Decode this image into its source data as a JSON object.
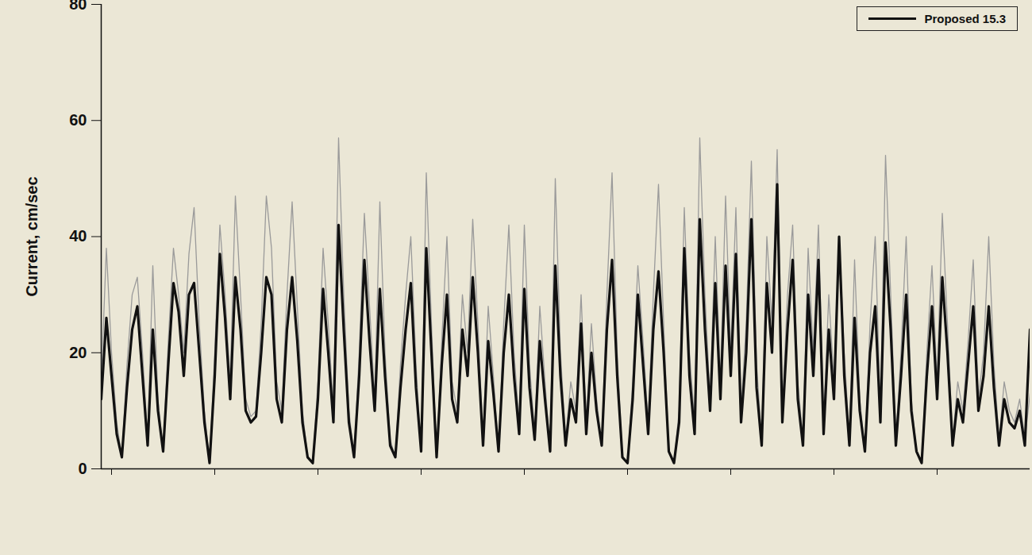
{
  "chart_data": {
    "type": "line",
    "y_label": "Current, cm/sec",
    "x": [
      189,
      189.5,
      190,
      190.5,
      191,
      191.5,
      192,
      192.5,
      193,
      193.5,
      194,
      194.5,
      195,
      195.5,
      196,
      196.5,
      197,
      197.5,
      198,
      198.5,
      199,
      199.5,
      200,
      200.5,
      201,
      201.5,
      202,
      202.5,
      203,
      203.5,
      204,
      204.5,
      205,
      205.5,
      206,
      206.5,
      207,
      207.5,
      208,
      208.5,
      209,
      209.5,
      210,
      210.5,
      211,
      211.5,
      212,
      212.5,
      213,
      213.5,
      214,
      214.5,
      215,
      215.5,
      216,
      216.5,
      217,
      217.5,
      218,
      218.5,
      219,
      219.5,
      220,
      220.5,
      221,
      221.5,
      222,
      222.5,
      223,
      223.5,
      224,
      224.5,
      225,
      225.5,
      226,
      226.5,
      227,
      227.5,
      228,
      228.5,
      229,
      229.5,
      230,
      230.5,
      231,
      231.5,
      232,
      232.5,
      233,
      233.5,
      234,
      234.5,
      235,
      235.5,
      236,
      236.5,
      237,
      237.5,
      238,
      238.5,
      239,
      239.5,
      240,
      240.5,
      241,
      241.5,
      242,
      242.5,
      243,
      243.5,
      244,
      244.5,
      245,
      245.5,
      246,
      246.5,
      247,
      247.5,
      248,
      248.5,
      249,
      249.5,
      250,
      250.5,
      251,
      251.5,
      252,
      252.5,
      253,
      253.5,
      254,
      254.5,
      255,
      255.5,
      256,
      256.5,
      257,
      257.5,
      258,
      258.5,
      259,
      259.5,
      260,
      260.5,
      261,
      261.5,
      262,
      262.5,
      263,
      263.5,
      264,
      264.5,
      265,
      265.5,
      266,
      266.5,
      267,
      267.5,
      268,
      268.5,
      269,
      269.5,
      270,
      270.5,
      271,
      271.5,
      272,
      272.5,
      273,
      273.5,
      274,
      274.5,
      275,
      275.5,
      276,
      276.5,
      277,
      277.5,
      278,
      278.5,
      279
    ],
    "series": [
      {
        "color": "#9a9a9a",
        "values": [
          15,
          38,
          20,
          8,
          2,
          18,
          30,
          33,
          20,
          5,
          35,
          12,
          3,
          22,
          38,
          30,
          20,
          37,
          45,
          25,
          10,
          1,
          20,
          42,
          30,
          15,
          47,
          30,
          12,
          9,
          10,
          25,
          47,
          38,
          15,
          10,
          30,
          46,
          28,
          10,
          2,
          1,
          15,
          38,
          25,
          10,
          57,
          30,
          10,
          2,
          20,
          44,
          28,
          12,
          46,
          20,
          5,
          2,
          18,
          30,
          40,
          18,
          3,
          51,
          25,
          2,
          22,
          40,
          15,
          10,
          30,
          20,
          43,
          25,
          5,
          28,
          16,
          3,
          25,
          42,
          20,
          8,
          42,
          18,
          6,
          28,
          15,
          3,
          50,
          20,
          5,
          15,
          10,
          30,
          8,
          25,
          12,
          4,
          30,
          51,
          20,
          2,
          1,
          15,
          35,
          22,
          8,
          30,
          49,
          25,
          3,
          1,
          10,
          45,
          20,
          8,
          57,
          30,
          12,
          40,
          15,
          47,
          20,
          45,
          10,
          25,
          53,
          18,
          5,
          40,
          25,
          55,
          10,
          30,
          42,
          15,
          5,
          38,
          20,
          42,
          8,
          30,
          15,
          40,
          20,
          5,
          36,
          12,
          3,
          25,
          40,
          10,
          54,
          30,
          5,
          20,
          40,
          12,
          3,
          1,
          20,
          35,
          15,
          44,
          25,
          5,
          15,
          10,
          22,
          36,
          12,
          20,
          40,
          18,
          5,
          15,
          10,
          8,
          12,
          5,
          13
        ]
      },
      {
        "name": "Proposed 15.3",
        "color": "#111111",
        "values": [
          12,
          26,
          16,
          6,
          2,
          14,
          24,
          28,
          16,
          4,
          24,
          10,
          3,
          18,
          32,
          27,
          16,
          30,
          32,
          20,
          8,
          1,
          16,
          37,
          26,
          12,
          33,
          24,
          10,
          8,
          9,
          20,
          33,
          30,
          12,
          8,
          24,
          33,
          22,
          8,
          2,
          1,
          12,
          31,
          20,
          8,
          42,
          24,
          8,
          2,
          16,
          36,
          22,
          10,
          31,
          16,
          4,
          2,
          14,
          24,
          32,
          14,
          3,
          38,
          20,
          2,
          18,
          30,
          12,
          8,
          24,
          16,
          33,
          20,
          4,
          22,
          13,
          3,
          20,
          30,
          16,
          6,
          31,
          14,
          5,
          22,
          12,
          3,
          35,
          16,
          4,
          12,
          8,
          25,
          6,
          20,
          10,
          4,
          24,
          36,
          16,
          2,
          1,
          12,
          30,
          18,
          6,
          24,
          34,
          20,
          3,
          1,
          8,
          38,
          16,
          6,
          43,
          24,
          10,
          32,
          12,
          35,
          16,
          37,
          8,
          20,
          43,
          14,
          4,
          32,
          20,
          49,
          8,
          24,
          36,
          12,
          4,
          30,
          16,
          36,
          6,
          24,
          12,
          40,
          16,
          4,
          26,
          10,
          3,
          20,
          28,
          8,
          39,
          24,
          4,
          16,
          30,
          10,
          3,
          1,
          16,
          28,
          12,
          33,
          20,
          4,
          12,
          8,
          18,
          28,
          10,
          16,
          28,
          14,
          4,
          12,
          8,
          7,
          10,
          4,
          24
        ]
      }
    ],
    "xlim": [
      189,
      279
    ],
    "xticks": [
      190,
      200,
      210,
      220,
      230,
      240,
      250,
      260,
      270
    ],
    "ylim": [
      0,
      80
    ],
    "yticks": [
      0,
      20,
      40,
      60,
      80
    ],
    "tick_labels": "y",
    "legend": "top-right"
  }
}
